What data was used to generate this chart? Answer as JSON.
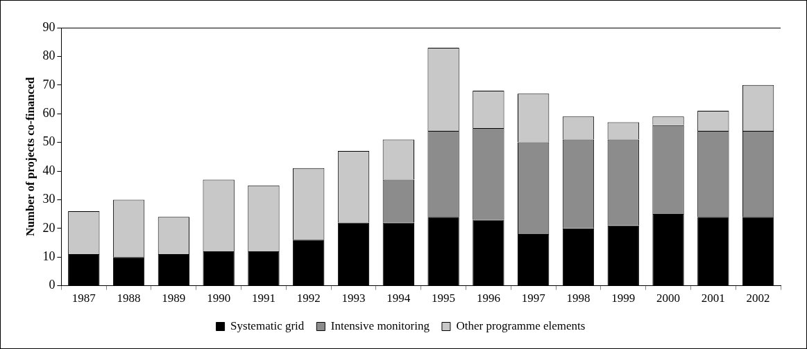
{
  "chart_data": {
    "type": "bar",
    "stacked": true,
    "ylabel": "Number of projects co-financed",
    "categories": [
      "1987",
      "1988",
      "1989",
      "1990",
      "1991",
      "1992",
      "1993",
      "1994",
      "1995",
      "1996",
      "1997",
      "1998",
      "1999",
      "2000",
      "2001",
      "2002"
    ],
    "series": [
      {
        "name": "Systematic grid",
        "color": "#000000",
        "values": [
          11,
          10,
          11,
          12,
          12,
          16,
          22,
          22,
          24,
          23,
          18,
          20,
          21,
          25,
          24,
          24
        ]
      },
      {
        "name": "Intensive monitoring",
        "color": "#8c8c8c",
        "values": [
          0,
          0,
          0,
          0,
          0,
          0,
          0,
          15,
          30,
          32,
          32,
          31,
          30,
          31,
          30,
          30
        ]
      },
      {
        "name": "Other programme elements",
        "color": "#c8c8c8",
        "values": [
          15,
          20,
          13,
          25,
          23,
          25,
          25,
          14,
          29,
          13,
          17,
          8,
          6,
          3,
          7,
          16
        ]
      }
    ],
    "ylim": [
      0,
      90
    ],
    "yticks": [
      0,
      10,
      20,
      30,
      40,
      50,
      60,
      70,
      80,
      90
    ],
    "grid": false,
    "legend": "bottom"
  }
}
